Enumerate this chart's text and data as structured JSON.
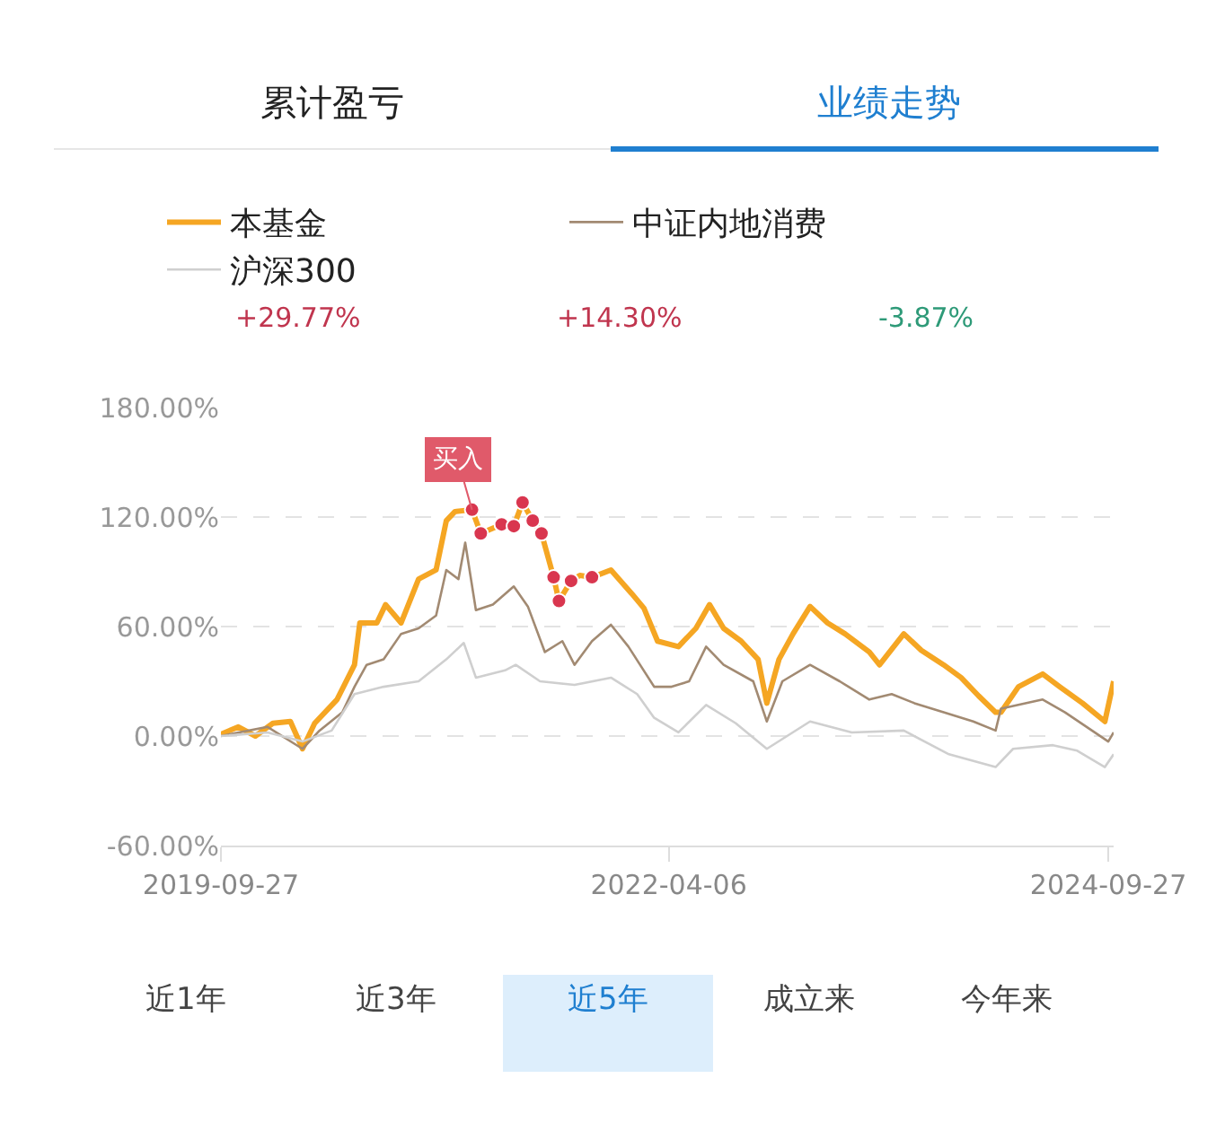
{
  "chart_data": {
    "type": "line",
    "annotations": [
      "累计盈亏",
      "业绩走势",
      "+29.77%",
      "+14.30%",
      "-3.87%",
      "近1年",
      "近3年",
      "近5年",
      "成立来",
      "今年来",
      {
        "text": "买入",
        "x": "2021-02-25",
        "y": 124
      }
    ],
    "series": [
      {
        "name": "本基金",
        "color": "#f5a623",
        "x": [
          "2019-09-27",
          "2019-11-02",
          "2019-12-07",
          "2020-01-12",
          "2020-02-17",
          "2020-03-13",
          "2020-04-07",
          "2020-05-23",
          "2020-06-28",
          "2020-07-09",
          "2020-08-13",
          "2020-08-31",
          "2020-10-02",
          "2020-11-07",
          "2020-12-13",
          "2021-01-03",
          "2021-01-21",
          "2021-02-25",
          "2021-03-15",
          "2021-04-27",
          "2021-05-22",
          "2021-06-09",
          "2021-06-30",
          "2021-07-18",
          "2021-08-12",
          "2021-08-23",
          "2021-09-17",
          "2021-10-05",
          "2021-10-30",
          "2021-12-08",
          "2022-01-20",
          "2022-02-14",
          "2022-03-14",
          "2022-04-26",
          "2022-06-01",
          "2022-06-29",
          "2022-07-28",
          "2022-09-02",
          "2022-10-07",
          "2022-10-25",
          "2022-11-19",
          "2022-12-18",
          "2023-01-22",
          "2023-02-27",
          "2023-04-04",
          "2023-05-24",
          "2023-06-14",
          "2023-08-03",
          "2023-09-08",
          "2023-10-24",
          "2023-11-29",
          "2024-01-04",
          "2024-02-08",
          "2024-02-19",
          "2024-03-26",
          "2024-05-15",
          "2024-06-19",
          "2024-08-05",
          "2024-09-20",
          "2024-10-08"
        ],
        "values": [
          1,
          5,
          0,
          7,
          8,
          -7,
          7,
          20,
          39,
          62,
          62,
          72,
          62,
          86,
          91,
          118,
          123,
          124,
          111,
          116,
          115,
          128,
          118,
          111,
          87,
          74,
          85,
          88,
          87,
          91,
          78,
          70,
          52,
          49,
          59,
          72,
          59,
          52,
          42,
          18,
          42,
          56,
          71,
          62,
          56,
          46,
          39,
          56,
          47,
          39,
          32,
          22,
          13,
          13,
          27,
          34,
          27,
          18,
          8,
          30
        ]
      },
      {
        "name": "中证内地消费",
        "color": "#a28a72",
        "x": [
          "2019-09-27",
          "2020-01-01",
          "2020-03-13",
          "2020-04-17",
          "2020-06-03",
          "2020-06-28",
          "2020-07-23",
          "2020-08-27",
          "2020-10-02",
          "2020-11-07",
          "2020-12-13",
          "2021-01-03",
          "2021-01-28",
          "2021-02-11",
          "2021-03-05",
          "2021-04-09",
          "2021-05-22",
          "2021-06-20",
          "2021-07-25",
          "2021-08-30",
          "2021-09-24",
          "2021-10-30",
          "2021-12-08",
          "2022-01-13",
          "2022-03-07",
          "2022-04-12",
          "2022-05-18",
          "2022-06-22",
          "2022-07-28",
          "2022-09-27",
          "2022-10-25",
          "2022-11-26",
          "2023-01-22",
          "2023-03-24",
          "2023-05-24",
          "2023-07-09",
          "2023-08-25",
          "2023-10-24",
          "2023-12-24",
          "2024-02-08",
          "2024-02-19",
          "2024-05-15",
          "2024-06-30",
          "2024-08-30",
          "2024-09-27",
          "2024-10-08"
        ],
        "values": [
          0,
          5,
          -7,
          3,
          13,
          27,
          39,
          42,
          56,
          59,
          66,
          91,
          86,
          106,
          69,
          72,
          82,
          71,
          46,
          52,
          39,
          52,
          61,
          49,
          27,
          27,
          30,
          49,
          39,
          30,
          8,
          30,
          39,
          30,
          20,
          23,
          18,
          13,
          8,
          3,
          15,
          20,
          13,
          2,
          -3,
          2
        ]
      },
      {
        "name": "沪深300",
        "color": "#cfcfcf",
        "x": [
          "2019-09-27",
          "2020-01-01",
          "2020-03-13",
          "2020-05-12",
          "2020-06-28",
          "2020-08-27",
          "2020-11-07",
          "2021-01-03",
          "2021-02-08",
          "2021-03-05",
          "2021-05-04",
          "2021-05-26",
          "2021-07-15",
          "2021-09-24",
          "2021-12-08",
          "2022-01-31",
          "2022-03-07",
          "2022-04-26",
          "2022-06-22",
          "2022-08-22",
          "2022-10-25",
          "2023-01-22",
          "2023-04-18",
          "2023-08-03",
          "2023-11-04",
          "2024-02-08",
          "2024-03-15",
          "2024-06-05",
          "2024-07-25",
          "2024-09-20",
          "2024-10-08"
        ],
        "values": [
          0,
          2,
          -3,
          3,
          23,
          27,
          30,
          42,
          51,
          32,
          36,
          39,
          30,
          28,
          32,
          23,
          10,
          2,
          17,
          7,
          -7,
          8,
          2,
          3,
          -10,
          -17,
          -7,
          -5,
          -8,
          -17,
          -10
        ]
      },
      {
        "type": "scatter",
        "marker": "circle",
        "color": "#d9364f",
        "x": [
          "2021-02-25",
          "2021-03-15",
          "2021-04-27",
          "2021-05-22",
          "2021-06-09",
          "2021-06-30",
          "2021-07-18",
          "2021-08-12",
          "2021-08-23",
          "2021-09-17",
          "2021-10-30"
        ],
        "values": [
          124,
          111,
          116,
          115,
          128,
          118,
          111,
          87,
          74,
          85,
          87
        ]
      }
    ],
    "xlim": [
      "2019-09-27",
      "2024-10-08"
    ],
    "xticks": [
      "2019-09-27",
      "2022-04-06",
      "2024-09-27"
    ],
    "ylim": [
      -60,
      180
    ],
    "yticks": [
      {
        "value": -60,
        "label": "-60.00%"
      },
      {
        "value": 0,
        "label": "0.00%"
      },
      {
        "value": 60,
        "label": "60.00%"
      },
      {
        "value": 120,
        "label": "120.00%"
      },
      {
        "value": 180,
        "label": "180.00%"
      }
    ],
    "grid": "y",
    "legend": "top",
    "marker": "none",
    "line_style": "solid"
  }
}
